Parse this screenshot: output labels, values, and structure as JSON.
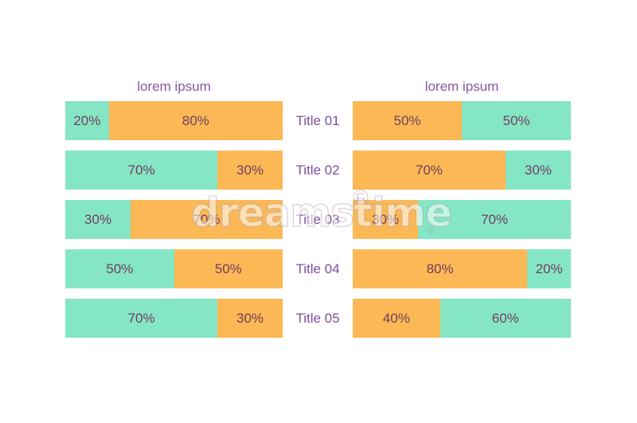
{
  "colors": {
    "teal": "#85e6c5",
    "orange": "#fbb855",
    "header_text": "#8757a3",
    "title_text": "#7b4f9c",
    "percent_text": "#713e60",
    "background": "#ffffff"
  },
  "watermark": {
    "text": "dreamstime",
    "symbol": "©",
    "registered": "®"
  },
  "chart_data": [
    {
      "type": "bar",
      "orientation": "horizontal",
      "stacked": true,
      "title": "lorem ipsum",
      "categories": [
        "Title 01",
        "Title 02",
        "Title 03",
        "Title 04",
        "Title 05"
      ],
      "series": [
        {
          "name": "teal-segment",
          "color": "#85e6c5",
          "values": [
            20,
            70,
            30,
            50,
            70
          ]
        },
        {
          "name": "orange-segment",
          "color": "#fbb855",
          "values": [
            80,
            30,
            70,
            50,
            30
          ]
        }
      ],
      "value_unit": "%",
      "xlim": [
        0,
        100
      ],
      "grid": false,
      "legend": false,
      "data_labels": true
    },
    {
      "type": "bar",
      "orientation": "horizontal",
      "stacked": true,
      "title": "lorem ipsum",
      "categories": [
        "Title 01",
        "Title 02",
        "Title 03",
        "Title 04",
        "Title 05"
      ],
      "series": [
        {
          "name": "orange-segment",
          "color": "#fbb855",
          "values": [
            50,
            70,
            30,
            80,
            40
          ]
        },
        {
          "name": "teal-segment",
          "color": "#85e6c5",
          "values": [
            50,
            30,
            70,
            20,
            60
          ]
        }
      ],
      "value_unit": "%",
      "xlim": [
        0,
        100
      ],
      "grid": false,
      "legend": false,
      "data_labels": true
    }
  ]
}
